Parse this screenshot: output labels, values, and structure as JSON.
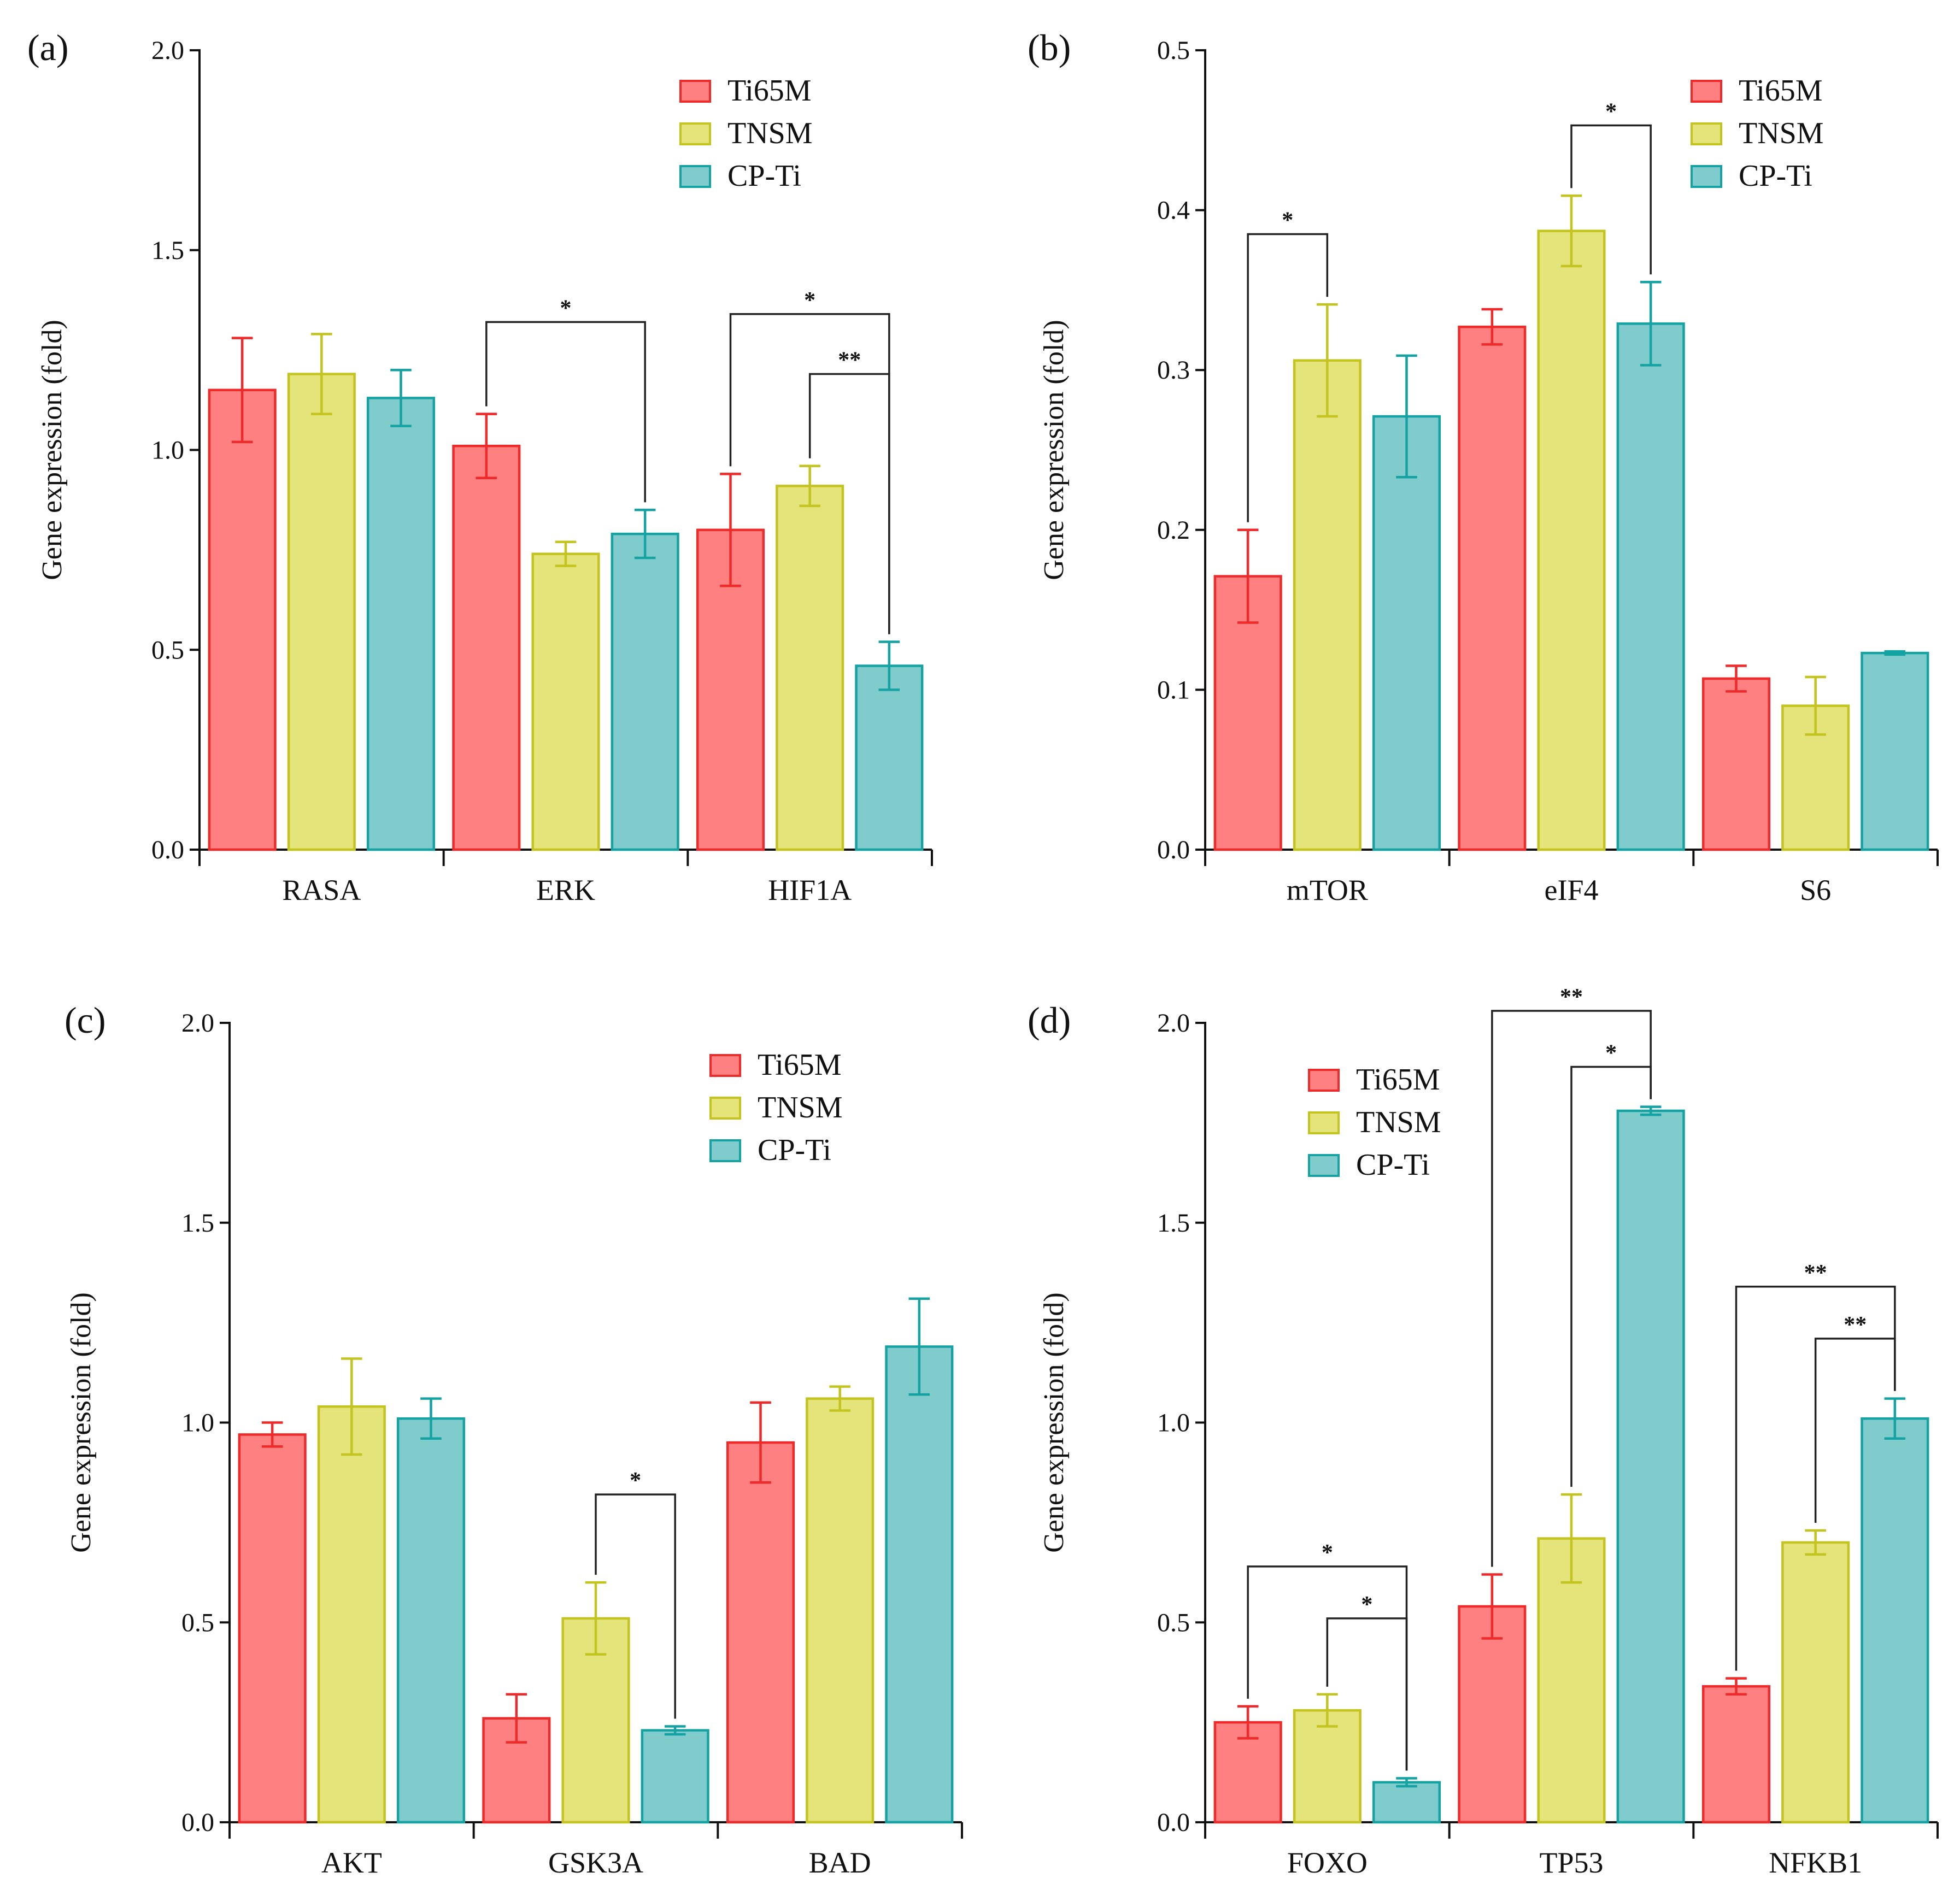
{
  "series_colors": {
    "Ti65M": {
      "fill": "#ff8080",
      "stroke": "#ee2a2a"
    },
    "TNSM": {
      "fill": "#e4e47a",
      "stroke": "#c4c420"
    },
    "CP-Ti": {
      "fill": "#80cccc",
      "stroke": "#15a2a2"
    }
  },
  "chart_data": [
    {
      "type": "bar",
      "panel": "(a)",
      "ylabel": "Gene expression (fold)",
      "ylim": [
        0,
        2.0
      ],
      "yticks": [
        0.0,
        0.5,
        1.0,
        1.5,
        2.0
      ],
      "ytick_labels": [
        "0.0",
        "0.5",
        "1.0",
        "1.5",
        "2.0"
      ],
      "categories": [
        "RASA",
        "ERK",
        "HIF1A"
      ],
      "legend_position": "top-right",
      "series": [
        {
          "name": "Ti65M",
          "values": [
            1.15,
            1.01,
            0.8
          ],
          "errors": [
            0.13,
            0.08,
            0.14
          ]
        },
        {
          "name": "TNSM",
          "values": [
            1.19,
            0.74,
            0.91
          ],
          "errors": [
            0.1,
            0.03,
            0.05
          ]
        },
        {
          "name": "CP-Ti",
          "values": [
            1.13,
            0.79,
            0.46
          ],
          "errors": [
            0.07,
            0.06,
            0.06
          ]
        }
      ],
      "significance": [
        {
          "cat": 1,
          "from": 0,
          "to": 2,
          "y": 1.32,
          "label": "*"
        },
        {
          "cat": 2,
          "from": 0,
          "to": 2,
          "y": 1.34,
          "label": "*"
        },
        {
          "cat": 2,
          "from": 1,
          "to": 2,
          "y": 1.19,
          "label": "**"
        }
      ]
    },
    {
      "type": "bar",
      "panel": "(b)",
      "ylabel": "Gene expression (fold)",
      "ylim": [
        0,
        0.5
      ],
      "yticks": [
        0.0,
        0.1,
        0.2,
        0.3,
        0.4,
        0.5
      ],
      "ytick_labels": [
        "0.0",
        "0.1",
        "0.2",
        "0.3",
        "0.4",
        "0.5"
      ],
      "categories": [
        "mTOR",
        "eIF4",
        "S6"
      ],
      "legend_position": "top-right",
      "series": [
        {
          "name": "Ti65M",
          "values": [
            0.171,
            0.327,
            0.107
          ],
          "errors": [
            0.029,
            0.011,
            0.008
          ]
        },
        {
          "name": "TNSM",
          "values": [
            0.306,
            0.387,
            0.09
          ],
          "errors": [
            0.035,
            0.022,
            0.018
          ]
        },
        {
          "name": "CP-Ti",
          "values": [
            0.271,
            0.329,
            0.123
          ],
          "errors": [
            0.038,
            0.026,
            0.001
          ]
        }
      ],
      "significance": [
        {
          "cat": 0,
          "from": 0,
          "to": 1,
          "y": 0.385,
          "label": "*"
        },
        {
          "cat": 1,
          "from": 1,
          "to": 2,
          "y": 0.453,
          "label": "*"
        }
      ]
    },
    {
      "type": "bar",
      "panel": "(c)",
      "ylabel": "Gene expression (fold)",
      "ylim": [
        0,
        2.0
      ],
      "yticks": [
        0.0,
        0.5,
        1.0,
        1.5,
        2.0
      ],
      "ytick_labels": [
        "0.0",
        "0.5",
        "1.0",
        "1.5",
        "2.0"
      ],
      "categories": [
        "AKT",
        "GSK3A",
        "BAD"
      ],
      "legend_position": "top-right",
      "series": [
        {
          "name": "Ti65M",
          "values": [
            0.97,
            0.26,
            0.95
          ],
          "errors": [
            0.03,
            0.06,
            0.1
          ]
        },
        {
          "name": "TNSM",
          "values": [
            1.04,
            0.51,
            1.06
          ],
          "errors": [
            0.12,
            0.09,
            0.03
          ]
        },
        {
          "name": "CP-Ti",
          "values": [
            1.01,
            0.23,
            1.19
          ],
          "errors": [
            0.05,
            0.01,
            0.12
          ]
        }
      ],
      "significance": [
        {
          "cat": 1,
          "from": 1,
          "to": 2,
          "y": 0.82,
          "label": "*"
        }
      ]
    },
    {
      "type": "bar",
      "panel": "(d)",
      "ylabel": "Gene expression (fold)",
      "ylim": [
        0,
        2.0
      ],
      "yticks": [
        0.0,
        0.5,
        1.0,
        1.5,
        2.0
      ],
      "ytick_labels": [
        "0.0",
        "0.5",
        "1.0",
        "1.5",
        "2.0"
      ],
      "categories": [
        "FOXO",
        "TP53",
        "NFKB1"
      ],
      "legend_position": "top-left",
      "series": [
        {
          "name": "Ti65M",
          "values": [
            0.25,
            0.54,
            0.34
          ],
          "errors": [
            0.04,
            0.08,
            0.02
          ]
        },
        {
          "name": "TNSM",
          "values": [
            0.28,
            0.71,
            0.7
          ],
          "errors": [
            0.04,
            0.11,
            0.03
          ]
        },
        {
          "name": "CP-Ti",
          "values": [
            0.1,
            1.78,
            1.01
          ],
          "errors": [
            0.01,
            0.01,
            0.05
          ]
        }
      ],
      "significance": [
        {
          "cat": 0,
          "from": 0,
          "to": 2,
          "y": 0.64,
          "label": "*"
        },
        {
          "cat": 0,
          "from": 1,
          "to": 2,
          "y": 0.51,
          "label": "*"
        },
        {
          "cat": 1,
          "from": 0,
          "to": 2,
          "y": 2.03,
          "label": "**"
        },
        {
          "cat": 1,
          "from": 1,
          "to": 2,
          "y": 1.89,
          "label": "*"
        },
        {
          "cat": 2,
          "from": 0,
          "to": 2,
          "y": 1.34,
          "label": "**"
        },
        {
          "cat": 2,
          "from": 1,
          "to": 2,
          "y": 1.21,
          "label": "**"
        }
      ]
    }
  ]
}
